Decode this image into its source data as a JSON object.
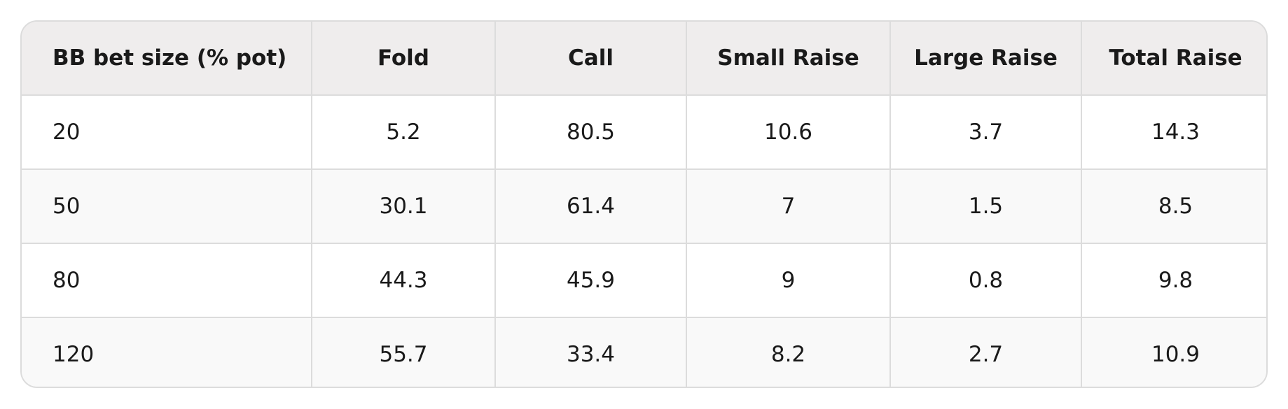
{
  "table": {
    "header": [
      "BB bet size (% pot)",
      "Fold",
      "Call",
      "Small Raise",
      "Large Raise",
      "Total Raise"
    ],
    "rows": [
      [
        "20",
        "5.2",
        "80.5",
        "10.6",
        "3.7",
        "14.3"
      ],
      [
        "50",
        "30.1",
        "61.4",
        "7",
        "1.5",
        "8.5"
      ],
      [
        "80",
        "44.3",
        "45.9",
        "9",
        "0.8",
        "9.8"
      ],
      [
        "120",
        "55.7",
        "33.4",
        "8.2",
        "2.7",
        "10.9"
      ]
    ]
  }
}
